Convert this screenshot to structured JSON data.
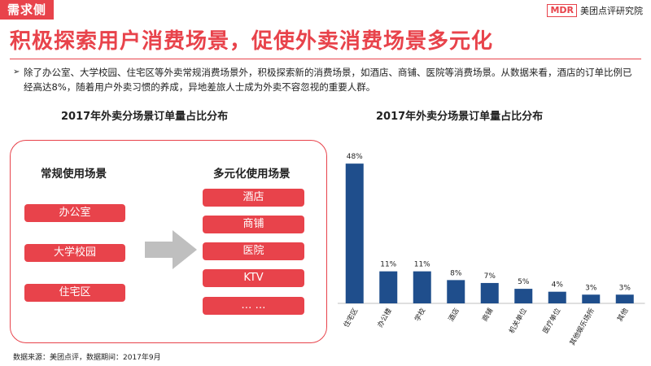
{
  "header": {
    "tag": "需求侧",
    "logo_mark": "MDR",
    "logo_text": "美团点评研究院",
    "title": "积极探索用户消费场景，促使外卖消费场景多元化"
  },
  "description": "除了办公室、大学校园、住宅区等外卖常规消费场景外，积极探索新的消费场景，如酒店、商铺、医院等消费场景。从数据来看，酒店的订单比例已经高达8%，随着用户外卖习惯的养成，异地差旅人士成为外卖不容忽视的重要人群。",
  "left_panel": {
    "title": "2017年外卖分场景订单量占比分布",
    "regular_head": "常规使用场景",
    "regular_items": [
      "办公室",
      "大学校园",
      "住宅区"
    ],
    "diverse_head": "多元化使用场景",
    "diverse_items": [
      "酒店",
      "商铺",
      "医院",
      "KTV",
      "… …"
    ]
  },
  "chart_title": "2017年外卖分场景订单量占比分布",
  "chart_data": {
    "type": "bar",
    "title": "2017年外卖分场景订单量占比分布",
    "categories": [
      "住宅区",
      "办公楼",
      "学校",
      "酒店",
      "商铺",
      "机关单位",
      "医疗单位",
      "其他娱乐场所",
      "其他"
    ],
    "values": [
      48,
      11,
      11,
      8,
      7,
      5,
      4,
      3,
      3
    ],
    "data_labels": [
      "48%",
      "11%",
      "11%",
      "8%",
      "7%",
      "5%",
      "4%",
      "3%",
      "3%"
    ],
    "ylim": [
      0,
      50
    ],
    "grid": false,
    "bar_color": "#1f4e8c"
  },
  "source": "数据来源：美团点评，数据期间：2017年9月",
  "colors": {
    "accent": "#e8434b",
    "arrow": "#bfbfbf"
  }
}
